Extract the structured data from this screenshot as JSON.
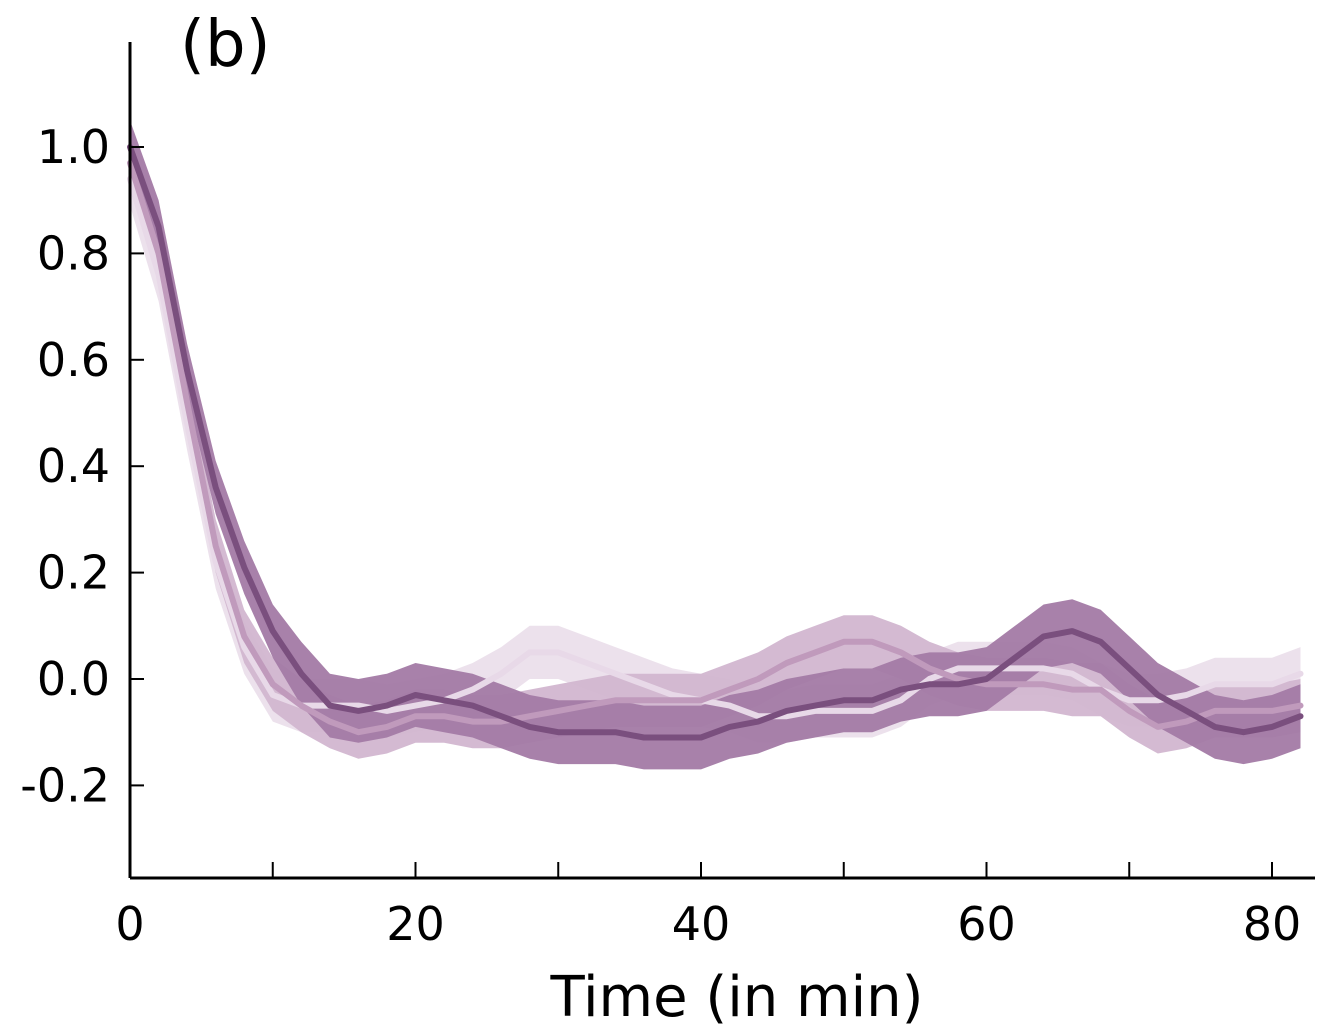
{
  "chart_data": {
    "type": "line",
    "panel_label": "(b)",
    "title": "",
    "xlabel": "Time (in min)",
    "ylabel": "",
    "xlim": [
      0,
      82
    ],
    "ylim": [
      -0.37,
      1.2
    ],
    "x_ticks": [
      0,
      20,
      40,
      60,
      80
    ],
    "x_minor_ticks": [
      10,
      30,
      50,
      70
    ],
    "x_tick_labels": [
      "0",
      "20",
      "40",
      "60",
      "80"
    ],
    "y_ticks": [
      1.0,
      0.8,
      0.6,
      0.4,
      0.2,
      0.0,
      -0.2
    ],
    "y_tick_labels": [
      "1.0",
      "0.8",
      "0.6",
      "0.4",
      "0.2",
      "0.0",
      "-0.2"
    ],
    "grid": false,
    "legend": "none",
    "series": [
      {
        "color": "#ebdfeb",
        "line_color": "#e8d9e8",
        "x": [
          0,
          2,
          4,
          6,
          8,
          10,
          12,
          14,
          16,
          18,
          20,
          22,
          24,
          26,
          28,
          30,
          32,
          34,
          36,
          38,
          40,
          42,
          44,
          46,
          48,
          50,
          52,
          54,
          56,
          58,
          60,
          62,
          64,
          66,
          68,
          70,
          72,
          74,
          76,
          78,
          80,
          82
        ],
        "mean": [
          0.94,
          0.76,
          0.48,
          0.22,
          0.06,
          -0.03,
          -0.05,
          -0.05,
          -0.05,
          -0.06,
          -0.05,
          -0.04,
          -0.02,
          0.01,
          0.05,
          0.05,
          0.03,
          0.01,
          -0.01,
          -0.03,
          -0.04,
          -0.05,
          -0.07,
          -0.07,
          -0.06,
          -0.06,
          -0.06,
          -0.04,
          0.0,
          0.02,
          0.02,
          0.02,
          0.02,
          0.01,
          -0.02,
          -0.04,
          -0.04,
          -0.03,
          -0.01,
          -0.01,
          -0.01,
          0.01
        ],
        "lower": [
          0.89,
          0.71,
          0.43,
          0.17,
          0.01,
          -0.08,
          -0.1,
          -0.1,
          -0.1,
          -0.11,
          -0.1,
          -0.09,
          -0.07,
          -0.04,
          0.0,
          0.0,
          -0.02,
          -0.04,
          -0.06,
          -0.08,
          -0.09,
          -0.1,
          -0.12,
          -0.12,
          -0.11,
          -0.11,
          -0.11,
          -0.09,
          -0.05,
          -0.03,
          -0.03,
          -0.03,
          -0.03,
          -0.04,
          -0.07,
          -0.09,
          -0.09,
          -0.08,
          -0.06,
          -0.06,
          -0.06,
          -0.04
        ],
        "upper": [
          0.99,
          0.81,
          0.53,
          0.27,
          0.11,
          0.02,
          0.0,
          0.0,
          0.0,
          -0.01,
          0.0,
          0.01,
          0.03,
          0.06,
          0.1,
          0.1,
          0.08,
          0.06,
          0.04,
          0.02,
          0.01,
          0.0,
          -0.02,
          -0.02,
          -0.01,
          -0.01,
          -0.01,
          0.01,
          0.05,
          0.07,
          0.07,
          0.07,
          0.07,
          0.06,
          0.03,
          0.01,
          0.01,
          0.02,
          0.04,
          0.04,
          0.04,
          0.06
        ]
      },
      {
        "color": "#d2b6d0",
        "line_color": "#c09abc",
        "x": [
          0,
          2,
          4,
          6,
          8,
          10,
          12,
          14,
          16,
          18,
          20,
          22,
          24,
          26,
          28,
          30,
          32,
          34,
          36,
          38,
          40,
          42,
          44,
          46,
          48,
          50,
          52,
          54,
          56,
          58,
          60,
          62,
          64,
          66,
          68,
          70,
          72,
          74,
          76,
          78,
          80,
          82
        ],
        "mean": [
          0.97,
          0.8,
          0.52,
          0.25,
          0.08,
          -0.01,
          -0.05,
          -0.08,
          -0.1,
          -0.09,
          -0.07,
          -0.07,
          -0.08,
          -0.08,
          -0.07,
          -0.06,
          -0.05,
          -0.04,
          -0.04,
          -0.04,
          -0.04,
          -0.02,
          0.0,
          0.03,
          0.05,
          0.07,
          0.07,
          0.05,
          0.02,
          0.0,
          -0.01,
          -0.01,
          -0.01,
          -0.02,
          -0.02,
          -0.06,
          -0.09,
          -0.08,
          -0.06,
          -0.06,
          -0.06,
          -0.05
        ],
        "lower": [
          0.92,
          0.75,
          0.47,
          0.2,
          0.03,
          -0.06,
          -0.1,
          -0.13,
          -0.15,
          -0.14,
          -0.12,
          -0.12,
          -0.13,
          -0.13,
          -0.12,
          -0.11,
          -0.1,
          -0.09,
          -0.09,
          -0.09,
          -0.09,
          -0.07,
          -0.05,
          -0.02,
          0.0,
          0.02,
          0.02,
          0.0,
          -0.03,
          -0.05,
          -0.06,
          -0.06,
          -0.06,
          -0.07,
          -0.07,
          -0.11,
          -0.14,
          -0.13,
          -0.11,
          -0.11,
          -0.11,
          -0.1
        ],
        "upper": [
          1.02,
          0.85,
          0.57,
          0.3,
          0.13,
          0.04,
          0.0,
          -0.03,
          -0.05,
          -0.04,
          -0.02,
          -0.02,
          -0.03,
          -0.03,
          -0.02,
          -0.01,
          0.0,
          0.01,
          0.01,
          0.01,
          0.01,
          0.03,
          0.05,
          0.08,
          0.1,
          0.12,
          0.12,
          0.1,
          0.07,
          0.05,
          0.04,
          0.04,
          0.04,
          0.03,
          0.03,
          -0.01,
          -0.04,
          -0.03,
          -0.01,
          -0.01,
          -0.01,
          0.0
        ]
      },
      {
        "color": "#a37aa5",
        "line_color": "#7a4f7e",
        "x": [
          0,
          2,
          4,
          6,
          8,
          10,
          12,
          14,
          16,
          18,
          20,
          22,
          24,
          26,
          28,
          30,
          32,
          34,
          36,
          38,
          40,
          42,
          44,
          46,
          48,
          50,
          52,
          54,
          56,
          58,
          60,
          62,
          64,
          66,
          68,
          70,
          72,
          74,
          76,
          78,
          80,
          82
        ],
        "mean": [
          1.0,
          0.85,
          0.58,
          0.36,
          0.21,
          0.09,
          0.01,
          -0.05,
          -0.06,
          -0.05,
          -0.03,
          -0.04,
          -0.05,
          -0.07,
          -0.09,
          -0.1,
          -0.1,
          -0.1,
          -0.11,
          -0.11,
          -0.11,
          -0.09,
          -0.08,
          -0.06,
          -0.05,
          -0.04,
          -0.04,
          -0.02,
          -0.01,
          -0.01,
          0.0,
          0.04,
          0.08,
          0.09,
          0.07,
          0.02,
          -0.03,
          -0.06,
          -0.09,
          -0.1,
          -0.09,
          -0.07
        ],
        "lower": [
          0.95,
          0.8,
          0.53,
          0.31,
          0.16,
          0.04,
          -0.05,
          -0.11,
          -0.12,
          -0.11,
          -0.09,
          -0.1,
          -0.11,
          -0.13,
          -0.15,
          -0.16,
          -0.16,
          -0.16,
          -0.17,
          -0.17,
          -0.17,
          -0.15,
          -0.14,
          -0.12,
          -0.11,
          -0.1,
          -0.1,
          -0.08,
          -0.07,
          -0.07,
          -0.06,
          -0.02,
          0.02,
          0.03,
          0.01,
          -0.04,
          -0.09,
          -0.12,
          -0.15,
          -0.16,
          -0.15,
          -0.13
        ],
        "upper": [
          1.05,
          0.9,
          0.63,
          0.41,
          0.26,
          0.14,
          0.07,
          0.01,
          0.0,
          0.01,
          0.03,
          0.02,
          0.01,
          -0.01,
          -0.03,
          -0.04,
          -0.04,
          -0.04,
          -0.05,
          -0.05,
          -0.05,
          -0.03,
          -0.02,
          0.0,
          0.01,
          0.02,
          0.02,
          0.04,
          0.05,
          0.05,
          0.06,
          0.1,
          0.14,
          0.15,
          0.13,
          0.08,
          0.03,
          0.0,
          -0.03,
          -0.04,
          -0.03,
          -0.01
        ]
      }
    ]
  }
}
